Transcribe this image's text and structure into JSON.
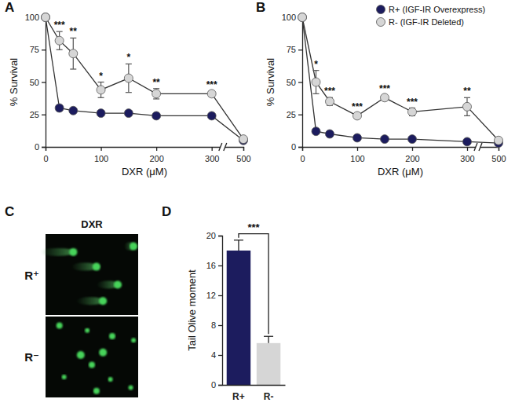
{
  "chart_data": [
    {
      "type": "line",
      "panel": "A",
      "x": [
        0,
        25,
        50,
        100,
        150,
        200,
        300,
        500
      ],
      "axis_break": 300,
      "xlim": [
        0,
        500
      ],
      "xticks": [
        0,
        100,
        200,
        300,
        500
      ],
      "ylim": [
        0,
        100
      ],
      "yticks": [
        0,
        25,
        50,
        75,
        100
      ],
      "x_label": "DXR (μM)",
      "y_label": "% Survival",
      "marker": "circle",
      "series": [
        {
          "color": "#1c1c5e",
          "values": [
            100,
            30,
            28,
            26,
            26,
            24,
            24,
            5
          ],
          "errors": [
            0,
            2,
            1,
            1,
            1,
            1,
            1,
            0
          ]
        },
        {
          "color": "#d6d6d6",
          "values": [
            100,
            82,
            72,
            44,
            53,
            41,
            41,
            6
          ],
          "errors": [
            0,
            7,
            12,
            6,
            11,
            4,
            2,
            0
          ]
        }
      ],
      "significance": [
        null,
        "***",
        "**",
        "*",
        "*",
        "**",
        "***",
        null
      ]
    },
    {
      "type": "line",
      "panel": "B",
      "x": [
        0,
        25,
        50,
        100,
        150,
        200,
        300,
        500
      ],
      "axis_break": 300,
      "xlim": [
        0,
        500
      ],
      "xticks": [
        0,
        100,
        200,
        300,
        500
      ],
      "ylim": [
        0,
        100
      ],
      "yticks": [
        0,
        25,
        50,
        75,
        100
      ],
      "x_label": "DXR (μM)",
      "y_label": "% Survival",
      "marker": "circle",
      "legend": "upper right",
      "series": [
        {
          "name": "R+ (IGF-IR Overexpress)",
          "color": "#1c1c5e",
          "values": [
            100,
            12,
            10,
            7,
            6,
            6,
            4,
            3
          ],
          "errors": [
            0,
            2,
            1,
            1,
            1,
            1,
            1,
            0
          ]
        },
        {
          "name": "R- (IGF-IR Deleted)",
          "color": "#d6d6d6",
          "values": [
            100,
            50,
            35,
            24,
            38,
            27,
            31,
            5
          ],
          "errors": [
            0,
            9,
            3,
            2,
            2,
            3,
            7,
            0
          ]
        }
      ],
      "significance": [
        null,
        "*",
        "***",
        "***",
        "***",
        "***",
        "**",
        null
      ]
    },
    {
      "type": "image",
      "panel": "C",
      "title": "DXR",
      "row_labels": [
        "R⁺",
        "R⁻"
      ]
    },
    {
      "type": "bar",
      "panel": "D",
      "categories": [
        "R+",
        "R-"
      ],
      "values": [
        18,
        5.6
      ],
      "errors": [
        1.4,
        0.9
      ],
      "colors": [
        "#1c1c5e",
        "#d6d6d6"
      ],
      "ylim": [
        0,
        20
      ],
      "yticks": [
        0,
        4,
        8,
        12,
        16,
        20
      ],
      "y_label": "Tail Olive moment",
      "significance": "***"
    }
  ]
}
